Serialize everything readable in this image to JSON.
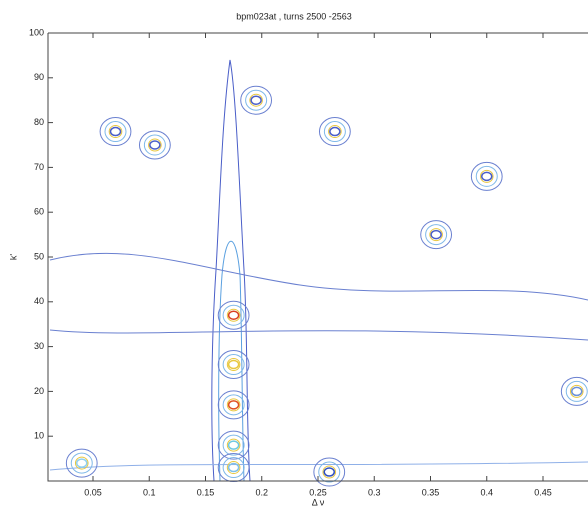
{
  "chart_data": {
    "type": "contour",
    "title": "bpm023at , turns 2500 -2563",
    "x_label": "Δ ν",
    "y_label": "k'",
    "xlim": [
      0.01,
      0.49
    ],
    "ylim": [
      0,
      100
    ],
    "xticks": [
      0.05,
      0.1,
      0.15,
      0.2,
      0.25,
      0.3,
      0.35,
      0.4,
      0.45
    ],
    "yticks": [
      10,
      20,
      30,
      40,
      50,
      60,
      70,
      80,
      90,
      100
    ],
    "peaks": {
      "x": [
        0.175,
        0.175,
        0.175,
        0.175,
        0.175,
        0.26,
        0.04,
        0.105,
        0.265,
        0.195,
        0.4,
        0.355,
        0.07,
        0.48
      ],
      "y": [
        37,
        17,
        26,
        8,
        3,
        2,
        4,
        75,
        78,
        85,
        68,
        55,
        78,
        20
      ],
      "color": [
        "#d94020",
        "#e05020",
        "#e8c840",
        "#70c8e0",
        "#80c0e8",
        "#3050c0",
        "#90d0f0",
        "#4a5ec8",
        "#4a5ec8",
        "#4a5ec8",
        "#4a5ec8",
        "#4a5ec8",
        "#4a5ec8",
        "#6a90d8"
      ]
    }
  }
}
